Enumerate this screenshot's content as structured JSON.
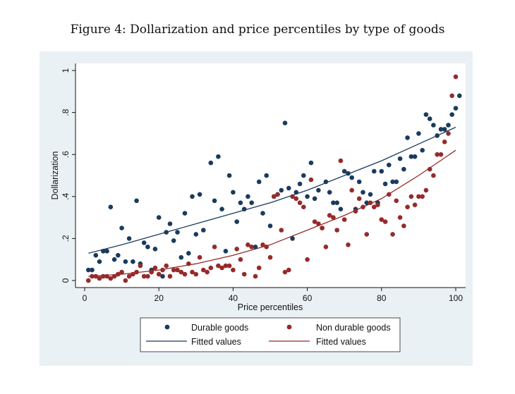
{
  "title": "Figure 4: Dollarization and price percentiles by type of goods",
  "colors": {
    "panel_bg": "#eaf1f5",
    "plot_bg": "#ffffff",
    "durable": "#1a3b5c",
    "non_durable": "#962a2a"
  },
  "chart_data": {
    "type": "scatter",
    "xlabel": "Price percentiles",
    "ylabel": "Dollarization",
    "xlim": [
      0,
      100
    ],
    "ylim": [
      0,
      1
    ],
    "xticks": [
      0,
      20,
      40,
      60,
      80,
      100
    ],
    "xtick_labels": [
      "0",
      "20",
      "40",
      "60",
      "80",
      "100"
    ],
    "yticks": [
      0,
      0.2,
      0.4,
      0.6,
      0.8,
      1
    ],
    "ytick_labels": [
      "0",
      ".2",
      ".4",
      ".6",
      ".8",
      "1"
    ],
    "grid": "none",
    "legend_position": "bottom",
    "series": [
      {
        "name": "Durable goods",
        "kind": "scatter",
        "points": [
          [
            1,
            0.05
          ],
          [
            2,
            0.05
          ],
          [
            3,
            0.12
          ],
          [
            4,
            0.09
          ],
          [
            5,
            0.14
          ],
          [
            6,
            0.14
          ],
          [
            7,
            0.35
          ],
          [
            8,
            0.1
          ],
          [
            9,
            0.12
          ],
          [
            10,
            0.25
          ],
          [
            11,
            0.09
          ],
          [
            12,
            0.2
          ],
          [
            13,
            0.09
          ],
          [
            14,
            0.38
          ],
          [
            15,
            0.08
          ],
          [
            16,
            0.18
          ],
          [
            17,
            0.16
          ],
          [
            18,
            0.05
          ],
          [
            19,
            0.15
          ],
          [
            20,
            0.3
          ],
          [
            21,
            0.02
          ],
          [
            22,
            0.23
          ],
          [
            23,
            0.27
          ],
          [
            24,
            0.19
          ],
          [
            25,
            0.23
          ],
          [
            26,
            0.11
          ],
          [
            27,
            0.32
          ],
          [
            28,
            0.13
          ],
          [
            29,
            0.4
          ],
          [
            30,
            0.22
          ],
          [
            31,
            0.41
          ],
          [
            32,
            0.24
          ],
          [
            34,
            0.56
          ],
          [
            35,
            0.38
          ],
          [
            36,
            0.59
          ],
          [
            37,
            0.34
          ],
          [
            38,
            0.14
          ],
          [
            39,
            0.5
          ],
          [
            40,
            0.42
          ],
          [
            41,
            0.28
          ],
          [
            42,
            0.37
          ],
          [
            43,
            0.34
          ],
          [
            44,
            0.4
          ],
          [
            45,
            0.37
          ],
          [
            46,
            0.16
          ],
          [
            47,
            0.47
          ],
          [
            48,
            0.32
          ],
          [
            49,
            0.5
          ],
          [
            50,
            0.26
          ],
          [
            51,
            0.4
          ],
          [
            52,
            0.41
          ],
          [
            53,
            0.43
          ],
          [
            54,
            0.75
          ],
          [
            55,
            0.44
          ],
          [
            56,
            0.2
          ],
          [
            57,
            0.42
          ],
          [
            58,
            0.46
          ],
          [
            59,
            0.5
          ],
          [
            60,
            0.4
          ],
          [
            61,
            0.56
          ],
          [
            62,
            0.39
          ],
          [
            63,
            0.43
          ],
          [
            64,
            0.25
          ],
          [
            65,
            0.47
          ],
          [
            66,
            0.42
          ],
          [
            67,
            0.37
          ],
          [
            68,
            0.37
          ],
          [
            69,
            0.34
          ],
          [
            70,
            0.52
          ],
          [
            71,
            0.51
          ],
          [
            72,
            0.49
          ],
          [
            73,
            0.34
          ],
          [
            74,
            0.47
          ],
          [
            75,
            0.42
          ],
          [
            76,
            0.37
          ],
          [
            77,
            0.41
          ],
          [
            78,
            0.52
          ],
          [
            79,
            0.37
          ],
          [
            80,
            0.52
          ],
          [
            81,
            0.46
          ],
          [
            82,
            0.55
          ],
          [
            83,
            0.47
          ],
          [
            84,
            0.47
          ],
          [
            85,
            0.58
          ],
          [
            86,
            0.53
          ],
          [
            87,
            0.68
          ],
          [
            88,
            0.59
          ],
          [
            89,
            0.59
          ],
          [
            90,
            0.7
          ],
          [
            91,
            0.62
          ],
          [
            92,
            0.79
          ],
          [
            93,
            0.77
          ],
          [
            94,
            0.74
          ],
          [
            95,
            0.69
          ],
          [
            96,
            0.72
          ],
          [
            97,
            0.72
          ],
          [
            98,
            0.74
          ],
          [
            99,
            0.79
          ],
          [
            100,
            0.82
          ],
          [
            101,
            0.88
          ]
        ]
      },
      {
        "name": "Non durable goods",
        "kind": "scatter",
        "points": [
          [
            1,
            0.0
          ],
          [
            2,
            0.02
          ],
          [
            3,
            0.02
          ],
          [
            4,
            0.01
          ],
          [
            5,
            0.02
          ],
          [
            6,
            0.02
          ],
          [
            7,
            0.01
          ],
          [
            8,
            0.02
          ],
          [
            9,
            0.03
          ],
          [
            10,
            0.04
          ],
          [
            11,
            0.0
          ],
          [
            12,
            0.02
          ],
          [
            13,
            0.03
          ],
          [
            14,
            0.04
          ],
          [
            15,
            0.07
          ],
          [
            16,
            0.02
          ],
          [
            17,
            0.02
          ],
          [
            18,
            0.04
          ],
          [
            19,
            0.06
          ],
          [
            20,
            0.03
          ],
          [
            21,
            0.05
          ],
          [
            22,
            0.07
          ],
          [
            23,
            0.02
          ],
          [
            24,
            0.05
          ],
          [
            25,
            0.05
          ],
          [
            26,
            0.04
          ],
          [
            27,
            0.03
          ],
          [
            28,
            0.08
          ],
          [
            29,
            0.04
          ],
          [
            30,
            0.03
          ],
          [
            31,
            0.11
          ],
          [
            32,
            0.05
          ],
          [
            33,
            0.04
          ],
          [
            34,
            0.06
          ],
          [
            35,
            0.16
          ],
          [
            36,
            0.07
          ],
          [
            37,
            0.06
          ],
          [
            38,
            0.07
          ],
          [
            39,
            0.07
          ],
          [
            40,
            0.05
          ],
          [
            41,
            0.15
          ],
          [
            42,
            0.1
          ],
          [
            43,
            0.03
          ],
          [
            44,
            0.17
          ],
          [
            45,
            0.16
          ],
          [
            46,
            0.02
          ],
          [
            47,
            0.06
          ],
          [
            48,
            0.17
          ],
          [
            49,
            0.16
          ],
          [
            50,
            0.11
          ],
          [
            51,
            0.4
          ],
          [
            52,
            0.41
          ],
          [
            53,
            0.24
          ],
          [
            54,
            0.04
          ],
          [
            55,
            0.05
          ],
          [
            56,
            0.4
          ],
          [
            57,
            0.39
          ],
          [
            58,
            0.37
          ],
          [
            59,
            0.35
          ],
          [
            60,
            0.1
          ],
          [
            61,
            0.48
          ],
          [
            62,
            0.28
          ],
          [
            63,
            0.27
          ],
          [
            64,
            0.25
          ],
          [
            65,
            0.16
          ],
          [
            66,
            0.31
          ],
          [
            67,
            0.3
          ],
          [
            68,
            0.24
          ],
          [
            69,
            0.57
          ],
          [
            70,
            0.29
          ],
          [
            71,
            0.17
          ],
          [
            72,
            0.43
          ],
          [
            73,
            0.33
          ],
          [
            74,
            0.39
          ],
          [
            75,
            0.35
          ],
          [
            76,
            0.22
          ],
          [
            77,
            0.37
          ],
          [
            78,
            0.35
          ],
          [
            79,
            0.36
          ],
          [
            80,
            0.29
          ],
          [
            81,
            0.28
          ],
          [
            82,
            0.41
          ],
          [
            83,
            0.22
          ],
          [
            84,
            0.38
          ],
          [
            85,
            0.3
          ],
          [
            86,
            0.26
          ],
          [
            87,
            0.35
          ],
          [
            88,
            0.4
          ],
          [
            89,
            0.36
          ],
          [
            90,
            0.4
          ],
          [
            91,
            0.4
          ],
          [
            92,
            0.43
          ],
          [
            93,
            0.53
          ],
          [
            94,
            0.5
          ],
          [
            95,
            0.6
          ],
          [
            96,
            0.6
          ],
          [
            97,
            0.66
          ],
          [
            98,
            0.7
          ],
          [
            99,
            0.88
          ],
          [
            100,
            0.97
          ]
        ]
      },
      {
        "name": "Fitted values",
        "kind": "line",
        "of": "Durable goods",
        "points": [
          [
            1,
            0.13
          ],
          [
            10,
            0.17
          ],
          [
            20,
            0.22
          ],
          [
            30,
            0.27
          ],
          [
            40,
            0.32
          ],
          [
            50,
            0.37
          ],
          [
            60,
            0.43
          ],
          [
            70,
            0.5
          ],
          [
            80,
            0.57
          ],
          [
            90,
            0.65
          ],
          [
            100,
            0.73
          ]
        ]
      },
      {
        "name": "Fitted values",
        "kind": "line",
        "of": "Non durable goods",
        "points": [
          [
            1,
            0.02
          ],
          [
            10,
            0.03
          ],
          [
            20,
            0.05
          ],
          [
            30,
            0.08
          ],
          [
            40,
            0.12
          ],
          [
            50,
            0.17
          ],
          [
            60,
            0.24
          ],
          [
            70,
            0.31
          ],
          [
            80,
            0.39
          ],
          [
            90,
            0.5
          ],
          [
            100,
            0.62
          ]
        ]
      }
    ]
  }
}
